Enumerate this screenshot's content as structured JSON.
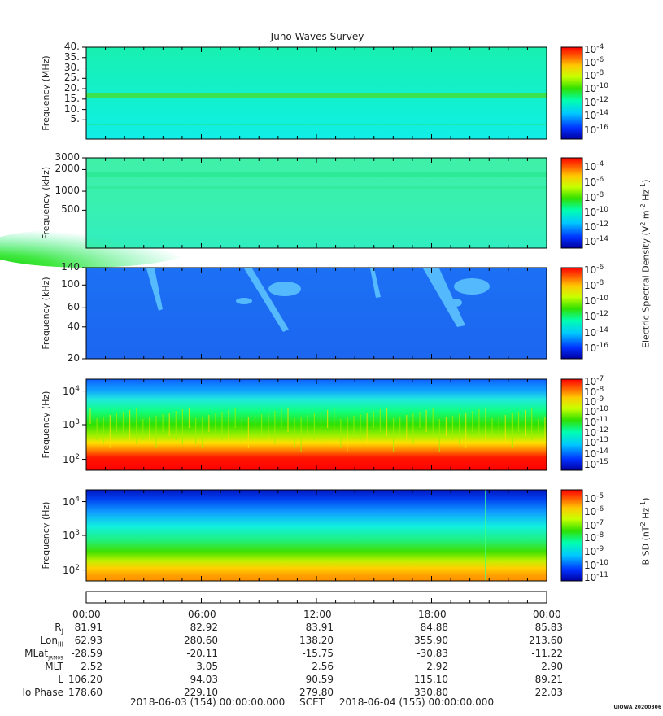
{
  "title": "Juno Waves Survey",
  "stamp": "UIOWA 20200306",
  "chart_data": [
    {
      "type": "heatmap",
      "ylabel": "Frequency (MHz)",
      "y_ticks": [
        "40.",
        "35.",
        "30.",
        "25.",
        "20.",
        "15.",
        "10.",
        "5."
      ],
      "scale": "linear",
      "features": [
        "uniform background ~1e-13",
        "emission band near 21 MHz",
        "faint band near 9 MHz"
      ],
      "colorbar": {
        "ticks": [
          "10-4",
          "10-6",
          "10-8",
          "10-10",
          "10-12",
          "10-14",
          "10-16"
        ]
      }
    },
    {
      "type": "heatmap",
      "ylabel": "Frequency (kHz)",
      "y_ticks": [
        "3000",
        "2000",
        "1000",
        "500"
      ],
      "scale": "log",
      "features": [
        "bands near 1700 and 1150 kHz",
        "enhanced emission at low frequency before ~05:00"
      ],
      "colorbar": {
        "ticks": [
          "10-4",
          "10-6",
          "10-8",
          "10-10",
          "10-12",
          "10-14"
        ]
      }
    },
    {
      "type": "heatmap",
      "ylabel": "Frequency (kHz)",
      "y_ticks": [
        "140",
        "100",
        "60",
        "40",
        "20"
      ],
      "scale": "linear",
      "features": [
        "bursts near 10:30 and 20:00 down to ~40 kHz"
      ],
      "colorbar": {
        "ticks": [
          "10-6",
          "10-8",
          "10-10",
          "10-12",
          "10-14",
          "10-16"
        ]
      }
    },
    {
      "type": "heatmap",
      "ylabel": "Frequency (Hz)",
      "y_ticks": [
        {
          "base": "10",
          "exp": "4"
        },
        {
          "base": "10",
          "exp": "3"
        },
        {
          "base": "10",
          "exp": "2"
        }
      ],
      "scale": "log",
      "features": [
        "intense emission below ~200 Hz",
        "green band to ~3 kHz"
      ],
      "colorbar": {
        "ticks": [
          "10-7",
          "10-8",
          "10-9",
          "10-10",
          "10-11",
          "10-12",
          "10-13",
          "10-14",
          "10-15"
        ]
      }
    },
    {
      "type": "heatmap",
      "ylabel": "Frequency (Hz)",
      "y_ticks": [
        {
          "base": "10",
          "exp": "4"
        },
        {
          "base": "10",
          "exp": "3"
        },
        {
          "base": "10",
          "exp": "2"
        }
      ],
      "scale": "log",
      "features": [
        "intense emission below ~200 Hz",
        "spike near 21:50"
      ],
      "colorbar": {
        "ticks": [
          "10-5",
          "10-6",
          "10-7",
          "10-8",
          "10-9",
          "10-10",
          "10-11"
        ]
      }
    }
  ],
  "colorbar_labels": {
    "e_field": {
      "text": "Electric Spectral Density (V",
      "sup1": "2",
      "mid": " m",
      "sup2": "-2",
      "mid2": " Hz",
      "sup3": "-1",
      "end": ")"
    },
    "b_field": {
      "text": "B SD (nT",
      "sup1": "2",
      "mid": " Hz",
      "sup2": "-1",
      "end": ")"
    }
  },
  "time_ticks": [
    "00:00",
    "06:00",
    "12:00",
    "18:00",
    "00:00"
  ],
  "ephemeris": [
    {
      "label": "R",
      "sub": "J",
      "values": [
        "81.91",
        "82.92",
        "83.91",
        "84.88",
        "85.83"
      ]
    },
    {
      "label": "Lon",
      "sub": "III",
      "values": [
        "62.93",
        "280.60",
        "138.20",
        "355.90",
        "213.60"
      ]
    },
    {
      "label": "MLat",
      "sub": "JRM09",
      "values": [
        "-28.59",
        "-20.11",
        "-15.75",
        "-30.83",
        "-11.22"
      ]
    },
    {
      "label": "MLT",
      "sub": "",
      "values": [
        "2.52",
        "3.05",
        "2.56",
        "2.92",
        "2.90"
      ]
    },
    {
      "label": "L",
      "sub": "",
      "values": [
        "106.20",
        "94.03",
        "90.59",
        "115.10",
        "89.21"
      ]
    },
    {
      "label": "Io Phase",
      "sub": "",
      "values": [
        "178.60",
        "229.10",
        "279.80",
        "330.80",
        "22.03"
      ]
    }
  ],
  "footer": {
    "start": "2018-06-03 (154) 00:00:00.000",
    "mid": "SCET",
    "end": "2018-06-04 (155) 00:00:00.000"
  }
}
